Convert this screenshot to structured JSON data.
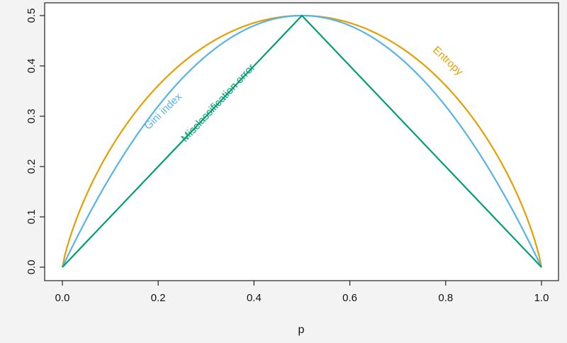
{
  "chart_data": {
    "type": "line",
    "title": "",
    "xlabel": "p",
    "ylabel": "",
    "xlim": [
      0,
      1
    ],
    "ylim": [
      0,
      0.5
    ],
    "x_ticks": [
      0.0,
      0.2,
      0.4,
      0.6,
      0.8,
      1.0
    ],
    "x_tick_labels": [
      "0.0",
      "0.2",
      "0.4",
      "0.6",
      "0.8",
      "1.0"
    ],
    "y_ticks": [
      0.0,
      0.1,
      0.2,
      0.3,
      0.4,
      0.5
    ],
    "y_tick_labels": [
      "0.0",
      "0.1",
      "0.2",
      "0.3",
      "0.4",
      "0.5"
    ],
    "grid": false,
    "legend": "none",
    "series": [
      {
        "name": "Entropy",
        "color": "#E69F00",
        "x": [
          0,
          0.02,
          0.05,
          0.1,
          0.15,
          0.2,
          0.25,
          0.3,
          0.35,
          0.4,
          0.45,
          0.5,
          0.55,
          0.6,
          0.65,
          0.7,
          0.75,
          0.8,
          0.85,
          0.9,
          0.95,
          0.98,
          1
        ],
        "y": [
          0,
          0.0707,
          0.1432,
          0.2345,
          0.3049,
          0.361,
          0.4056,
          0.4406,
          0.4671,
          0.4855,
          0.4964,
          0.5,
          0.4964,
          0.4855,
          0.4671,
          0.4406,
          0.4056,
          0.361,
          0.3049,
          0.2345,
          0.1432,
          0.0707,
          0
        ]
      },
      {
        "name": "Gini index",
        "color": "#56B4E9",
        "x": [
          0,
          0.02,
          0.05,
          0.1,
          0.15,
          0.2,
          0.25,
          0.3,
          0.35,
          0.4,
          0.45,
          0.5,
          0.55,
          0.6,
          0.65,
          0.7,
          0.75,
          0.8,
          0.85,
          0.9,
          0.95,
          0.98,
          1
        ],
        "y": [
          0,
          0.0392,
          0.095,
          0.18,
          0.255,
          0.32,
          0.375,
          0.42,
          0.455,
          0.48,
          0.495,
          0.5,
          0.495,
          0.48,
          0.455,
          0.42,
          0.375,
          0.32,
          0.255,
          0.18,
          0.095,
          0.0392,
          0
        ]
      },
      {
        "name": "Misclassification error",
        "color": "#009E73",
        "x": [
          0,
          0.5,
          1
        ],
        "y": [
          0,
          0.5,
          0
        ]
      }
    ],
    "annotations": [
      {
        "text": "Entropy",
        "x": 0.8,
        "y": 0.405,
        "angle": 43,
        "color": "#E69F00"
      },
      {
        "text": "Gini index",
        "x": 0.215,
        "y": 0.305,
        "angle": -44,
        "color": "#56B4E9"
      },
      {
        "text": "Misclassification error",
        "x": 0.33,
        "y": 0.322,
        "angle": -47,
        "color": "#009E73"
      }
    ]
  }
}
